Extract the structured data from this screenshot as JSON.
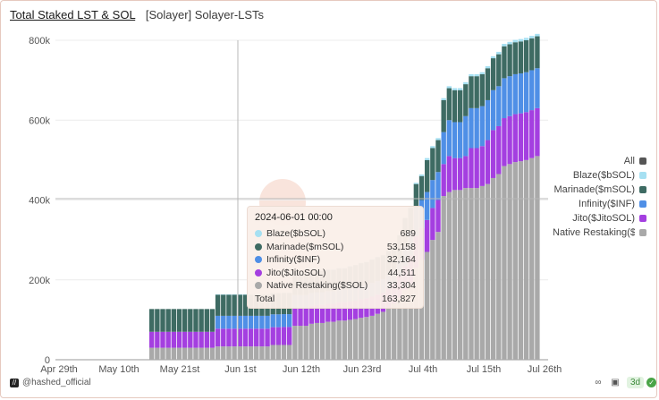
{
  "header": {
    "title": "Total Staked LST & SOL",
    "subtitle": "[Solayer] Solayer-LSTs"
  },
  "colors": {
    "blaze": "#a6e0f2",
    "marinade": "#3e6b63",
    "infinity": "#4f8fe6",
    "jito": "#a43fe0",
    "native": "#a9a9a9",
    "all": "#555555"
  },
  "legend": {
    "items": [
      {
        "label": "All",
        "color": "#555555"
      },
      {
        "label": "Blaze($bSOL)",
        "color": "#a6e0f2"
      },
      {
        "label": "Marinade($mSOL)",
        "color": "#3e6b63"
      },
      {
        "label": "Infinity($INF)",
        "color": "#4f8fe6"
      },
      {
        "label": "Jito($JitoSOL)",
        "color": "#a43fe0"
      },
      {
        "label": "Native Restaking($SOL)",
        "color": "#a9a9a9"
      }
    ]
  },
  "tooltip": {
    "title": "2024-06-01 00:00",
    "rows": [
      {
        "name": "Blaze($bSOL)",
        "value": "689",
        "color": "#a6e0f2"
      },
      {
        "name": "Marinade($mSOL)",
        "value": "53,158",
        "color": "#3e6b63"
      },
      {
        "name": "Infinity($INF)",
        "value": "32,164",
        "color": "#4f8fe6"
      },
      {
        "name": "Jito($JitoSOL)",
        "value": "44,511",
        "color": "#a43fe0"
      },
      {
        "name": "Native Restaking($SOL)",
        "value": "33,304",
        "color": "#a9a9a9"
      }
    ],
    "total_label": "Total",
    "total_value": "163,827"
  },
  "footer": {
    "handle": "@hashed_official",
    "range_badge": "3d"
  },
  "chart_data": {
    "type": "bar",
    "stacked": true,
    "x_ticks": [
      "Apr 29th",
      "May 10th",
      "May 21st",
      "Jun 1st",
      "Jun 12th",
      "Jun 23rd",
      "Jul 4th",
      "Jul 15th",
      "Jul 26th"
    ],
    "y_ticks": [
      "0",
      "200k",
      "400k",
      "600k",
      "800k"
    ],
    "ylim": [
      0,
      800000
    ],
    "grid": true,
    "legend_position": "right",
    "series_order": [
      "Native Restaking($SOL)",
      "Jito($JitoSOL)",
      "Infinity($INF)",
      "Marinade($mSOL)",
      "Blaze($bSOL)"
    ],
    "categories": [
      "May 18",
      "May 19",
      "May 20",
      "May 21",
      "May 22",
      "May 23",
      "May 24",
      "May 25",
      "May 26",
      "May 27",
      "May 28",
      "May 29",
      "May 30",
      "May 31",
      "Jun 1",
      "Jun 2",
      "Jun 3",
      "Jun 4",
      "Jun 5",
      "Jun 6",
      "Jun 7",
      "Jun 8",
      "Jun 9",
      "Jun 10",
      "Jun 11",
      "Jun 12",
      "Jun 13",
      "Jun 14",
      "Jun 15",
      "Jun 16",
      "Jun 17",
      "Jun 18",
      "Jun 19",
      "Jun 20",
      "Jun 21",
      "Jun 22",
      "Jun 23",
      "Jun 24",
      "Jun 25",
      "Jun 26",
      "Jun 27",
      "Jun 28",
      "Jun 29",
      "Jun 30",
      "Jul 1",
      "Jul 2",
      "Jul 3",
      "Jul 4",
      "Jul 5",
      "Jul 6",
      "Jul 7",
      "Jul 8",
      "Jul 9",
      "Jul 10",
      "Jul 11",
      "Jul 12",
      "Jul 13",
      "Jul 14",
      "Jul 15",
      "Jul 16",
      "Jul 17",
      "Jul 18",
      "Jul 19",
      "Jul 20",
      "Jul 21",
      "Jul 22",
      "Jul 23",
      "Jul 24",
      "Jul 25",
      "Jul 26",
      "Jul 27"
    ],
    "series": [
      {
        "name": "Native Restaking($SOL)",
        "values": [
          30000,
          30000,
          30000,
          30000,
          30000,
          30000,
          30000,
          30000,
          30000,
          30000,
          30000,
          30000,
          33304,
          33304,
          33304,
          33304,
          33304,
          33304,
          33304,
          33304,
          33304,
          33304,
          37000,
          37000,
          37000,
          37000,
          85000,
          85000,
          85000,
          90000,
          92000,
          92000,
          95000,
          95000,
          98000,
          98000,
          100000,
          102000,
          105000,
          107000,
          110000,
          115000,
          120000,
          128000,
          140000,
          155000,
          175000,
          190000,
          230000,
          250000,
          270000,
          300000,
          320000,
          410000,
          420000,
          425000,
          425000,
          430000,
          430000,
          430000,
          435000,
          440000,
          455000,
          465000,
          485000,
          490000,
          495000,
          497000,
          500000,
          505000,
          510000
        ]
      },
      {
        "name": "Jito($JitoSOL)",
        "values": [
          40000,
          40000,
          40000,
          40000,
          40000,
          40000,
          40000,
          40000,
          40000,
          40000,
          40000,
          40000,
          44511,
          44511,
          44511,
          44511,
          44511,
          44511,
          44511,
          44511,
          44511,
          44511,
          44511,
          44511,
          45000,
          45000,
          45000,
          45000,
          45000,
          45000,
          45000,
          45000,
          45000,
          45000,
          46000,
          46000,
          46000,
          46000,
          47000,
          47000,
          48000,
          48000,
          48000,
          50000,
          50000,
          55000,
          60000,
          70000,
          80000,
          80000,
          80000,
          80000,
          80000,
          80000,
          90000,
          80000,
          80000,
          80000,
          100000,
          100000,
          100000,
          110000,
          120000,
          120000,
          120000,
          120000,
          120000,
          120000,
          120000,
          120000,
          120000
        ]
      },
      {
        "name": "Infinity($INF)",
        "values": [
          0,
          0,
          0,
          0,
          0,
          0,
          0,
          0,
          0,
          0,
          0,
          0,
          32164,
          32164,
          32164,
          32164,
          32164,
          32164,
          32164,
          32164,
          32164,
          32164,
          32164,
          32164,
          32164,
          32164,
          32164,
          32164,
          32164,
          32164,
          32164,
          32164,
          32164,
          32164,
          32164,
          32164,
          33000,
          33000,
          33000,
          33000,
          34000,
          34000,
          34000,
          34000,
          35000,
          40000,
          50000,
          60000,
          70000,
          70000,
          70000,
          70000,
          70000,
          80000,
          90000,
          90000,
          90000,
          100000,
          100000,
          100000,
          100000,
          100000,
          100000,
          100000,
          100000,
          100000,
          100000,
          100000,
          100000,
          100000,
          100000
        ]
      },
      {
        "name": "Marinade($mSOL)",
        "values": [
          57000,
          57000,
          57000,
          57000,
          57000,
          57000,
          57000,
          57000,
          57000,
          57000,
          57000,
          57000,
          53158,
          53158,
          53158,
          53158,
          53158,
          53158,
          53158,
          53158,
          53158,
          53158,
          53158,
          53158,
          53158,
          53158,
          53158,
          53158,
          53158,
          53158,
          53158,
          53158,
          53158,
          53158,
          53158,
          53158,
          55000,
          56000,
          57000,
          58000,
          59000,
          60000,
          60000,
          61000,
          62000,
          62000,
          70000,
          60000,
          60000,
          60000,
          80000,
          80000,
          80000,
          80000,
          80000,
          80000,
          80000,
          80000,
          80000,
          80000,
          80000,
          80000,
          80000,
          80000,
          80000,
          80000,
          80000,
          80000,
          80000,
          80000,
          80000
        ]
      },
      {
        "name": "Blaze($bSOL)",
        "values": [
          0,
          0,
          0,
          0,
          0,
          0,
          0,
          0,
          0,
          0,
          0,
          0,
          689,
          689,
          689,
          689,
          689,
          689,
          689,
          689,
          689,
          689,
          689,
          689,
          689,
          689,
          689,
          689,
          689,
          689,
          689,
          689,
          689,
          689,
          689,
          689,
          700,
          700,
          700,
          700,
          700,
          700,
          700,
          700,
          800,
          800,
          900,
          2000,
          3000,
          4000,
          5000,
          5000,
          5000,
          5000,
          5000,
          5000,
          5000,
          5000,
          5000,
          5000,
          5000,
          5000,
          5000,
          6000,
          6000,
          6000,
          6000,
          6000,
          6000,
          6000,
          6000
        ]
      }
    ]
  }
}
